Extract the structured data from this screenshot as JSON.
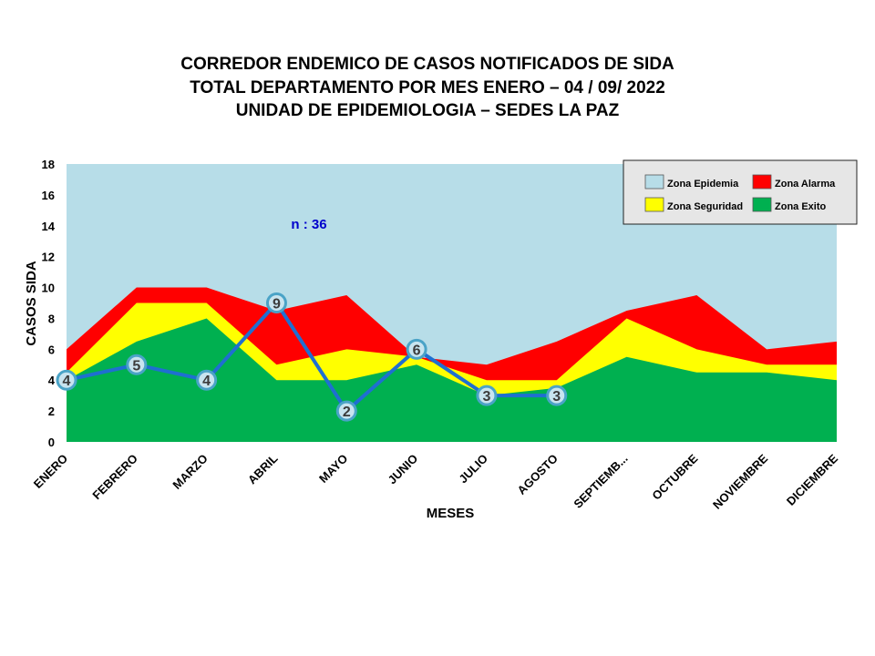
{
  "chart_data": {
    "type": "area",
    "title_lines": [
      "CORREDOR ENDEMICO  DE CASOS NOTIFICADOS  DE SIDA",
      "TOTAL DEPARTAMENTO  POR MES ENERO – 04 / 09/ 2022",
      "UNIDAD  DE EPIDEMIOLOGIA  – SEDES LA PAZ"
    ],
    "xlabel": "MESES",
    "ylabel": "CASOS SIDA",
    "ylim": [
      0,
      18
    ],
    "yticks": [
      "0",
      "2",
      "4",
      "6",
      "8",
      "10",
      "12",
      "14",
      "16",
      "18"
    ],
    "categories": [
      "ENERO",
      "FEBRERO",
      "MARZO",
      "ABRIL",
      "MAYO",
      "JUNIO",
      "JULIO",
      "AGOSTO",
      "SEPTIEMB...",
      "OCTUBRE",
      "NOVIEMBRE",
      "DICIEMBRE"
    ],
    "zones": [
      {
        "name": "Zona Epidemia",
        "color": "#b7dde8",
        "values": [
          18,
          18,
          18,
          18,
          18,
          18,
          18,
          18,
          18,
          18,
          18,
          18
        ]
      },
      {
        "name": "Zona Alarma",
        "color": "#ff0000",
        "values": [
          6,
          10,
          10,
          8.5,
          9.5,
          5.5,
          5,
          6.5,
          8.5,
          9.5,
          6,
          6.5
        ]
      },
      {
        "name": "Zona Seguridad",
        "color": "#ffff00",
        "values": [
          4.5,
          9,
          9,
          5,
          6,
          5.5,
          4,
          4,
          8,
          6,
          5,
          5
        ]
      },
      {
        "name": "Zona Exito",
        "color": "#00b050",
        "values": [
          4,
          6.5,
          8,
          4,
          4,
          5,
          3,
          3.5,
          5.5,
          4.5,
          4.5,
          4
        ]
      }
    ],
    "series": [
      {
        "color": "#1f6fd1",
        "values": [
          4,
          5,
          4,
          9,
          2,
          6,
          3,
          3,
          null,
          null,
          null,
          null
        ]
      }
    ],
    "point_labels": [
      "4",
      "5",
      "4",
      "9",
      "2",
      "6",
      "3",
      "3"
    ],
    "annotation": {
      "text": "n : 36",
      "color": "#0000cc"
    },
    "legend_position": "top-right",
    "grid": false
  }
}
